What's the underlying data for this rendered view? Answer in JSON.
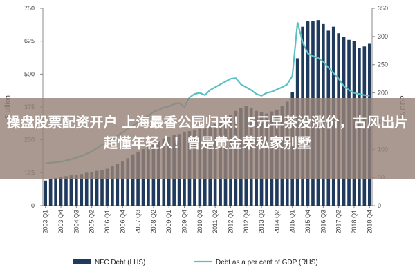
{
  "chart_data": {
    "type": "bar",
    "title": "",
    "ylabel_left": "$ billion",
    "ylabel_right": "% GDP",
    "ylim_left": [
      0,
      750
    ],
    "ylim_right": [
      0,
      350
    ],
    "yticks_left": [
      "0",
      "125",
      "250",
      "375",
      "500",
      "625",
      "750"
    ],
    "yticks_right": [
      "0",
      "50",
      "100",
      "150",
      "200",
      "250",
      "300",
      "350"
    ],
    "x_tick_labels": [
      "2003 Q1",
      "2003 Q4",
      "2004 Q3",
      "2005 Q2",
      "2006 Q1",
      "2006 Q4",
      "2007 Q3",
      "2008 Q2",
      "2009 Q1",
      "2009 Q4",
      "2010 Q3",
      "2011 Q2",
      "2012 Q1",
      "2012 Q4",
      "2013 Q3",
      "2014 Q2",
      "2015 Q1",
      "2015 Q4",
      "2016 Q3",
      "2017 Q2",
      "2018 Q1",
      "2018 Q4"
    ],
    "categories": [
      "2003Q1",
      "2003Q2",
      "2003Q3",
      "2003Q4",
      "2004Q1",
      "2004Q2",
      "2004Q3",
      "2004Q4",
      "2005Q1",
      "2005Q2",
      "2005Q3",
      "2005Q4",
      "2006Q1",
      "2006Q2",
      "2006Q3",
      "2006Q4",
      "2007Q1",
      "2007Q2",
      "2007Q3",
      "2007Q4",
      "2008Q1",
      "2008Q2",
      "2008Q3",
      "2008Q4",
      "2009Q1",
      "2009Q2",
      "2009Q3",
      "2009Q4",
      "2010Q1",
      "2010Q2",
      "2010Q3",
      "2010Q4",
      "2011Q1",
      "2011Q2",
      "2011Q3",
      "2011Q4",
      "2012Q1",
      "2012Q2",
      "2012Q3",
      "2012Q4",
      "2013Q1",
      "2013Q2",
      "2013Q3",
      "2013Q4",
      "2014Q1",
      "2014Q2",
      "2014Q3",
      "2014Q4",
      "2015Q1",
      "2015Q2",
      "2015Q3",
      "2015Q4",
      "2016Q1",
      "2016Q2",
      "2016Q3",
      "2016Q4",
      "2017Q1",
      "2017Q2",
      "2017Q3",
      "2017Q4",
      "2018Q1",
      "2018Q2",
      "2018Q3",
      "2018Q4"
    ],
    "series": [
      {
        "name": "NFC Debt (LHS)",
        "type": "bar",
        "axis": "left",
        "color": "#1f3a5c",
        "values": [
          95,
          100,
          105,
          108,
          112,
          115,
          118,
          120,
          125,
          128,
          132,
          136,
          140,
          150,
          160,
          170,
          180,
          195,
          205,
          215,
          225,
          235,
          245,
          255,
          262,
          268,
          272,
          278,
          283,
          287,
          292,
          297,
          302,
          310,
          320,
          332,
          345,
          360,
          372,
          380,
          370,
          360,
          355,
          350,
          358,
          365,
          378,
          395,
          430,
          560,
          680,
          700,
          702,
          705,
          690,
          665,
          680,
          655,
          640,
          630,
          625,
          600,
          605,
          615
        ]
      },
      {
        "name": "Debt as a per cent of GDP (RHS)",
        "type": "line",
        "axis": "right",
        "color": "#5bc0c3",
        "values": [
          75,
          76,
          77,
          78,
          80,
          82,
          85,
          88,
          92,
          96,
          102,
          108,
          112,
          118,
          124,
          130,
          136,
          142,
          148,
          155,
          160,
          166,
          170,
          174,
          176,
          180,
          182,
          175,
          192,
          198,
          200,
          196,
          205,
          210,
          215,
          220,
          225,
          226,
          215,
          210,
          205,
          198,
          195,
          200,
          202,
          206,
          210,
          215,
          230,
          325,
          290,
          270,
          265,
          262,
          255,
          245,
          235,
          225,
          212,
          205,
          200,
          198,
          196,
          195
        ]
      }
    ],
    "legend_position": "bottom",
    "grid": false
  },
  "overlay": {
    "text": "操盘股票配资开户 上海最香公园归来！5元早茶没涨价，古风出片超懂年轻人！曾是黄金荣私家别墅"
  }
}
